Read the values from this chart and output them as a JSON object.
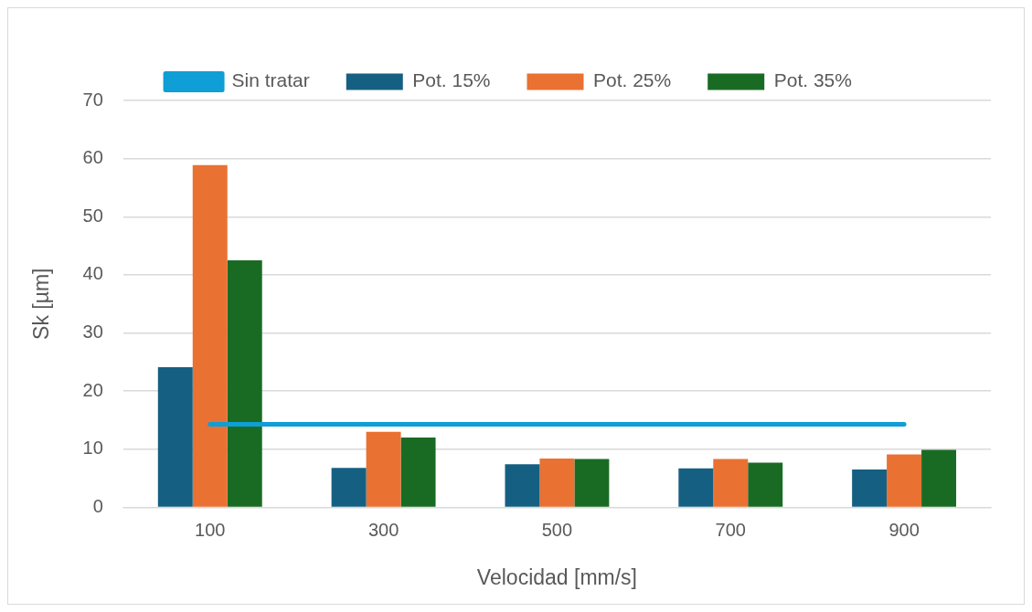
{
  "chart_data": {
    "type": "bar",
    "xlabel": "Velocidad [mm/s]",
    "ylabel": "Sk [µm]",
    "categories": [
      "100",
      "300",
      "500",
      "700",
      "900"
    ],
    "series": [
      {
        "name": "Pot. 15%",
        "color": "#156082",
        "values": [
          24.1,
          6.8,
          7.4,
          6.7,
          6.5
        ]
      },
      {
        "name": "Pot. 25%",
        "color": "#e97132",
        "values": [
          58.9,
          13,
          8.4,
          8.3,
          9.1
        ]
      },
      {
        "name": "Pot. 35%",
        "color": "#196b24",
        "values": [
          42.5,
          12,
          8.3,
          7.7,
          9.9
        ]
      },
      {
        "name": "Sin tratar",
        "type": "line",
        "color": "#0f9ed5",
        "values": [
          14.3,
          14.3,
          14.3,
          14.3,
          14.3
        ]
      }
    ],
    "ylim": [
      0,
      70
    ],
    "yticks": [
      0,
      10,
      20,
      30,
      40,
      50,
      60,
      70
    ],
    "grid": "y",
    "legend": "top",
    "marker": "none"
  }
}
